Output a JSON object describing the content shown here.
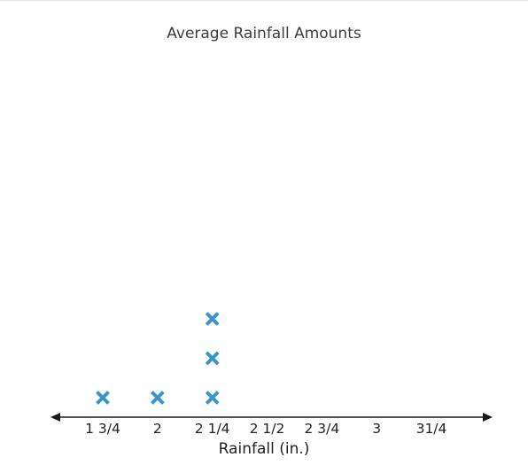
{
  "chart_data": {
    "type": "scatter",
    "subtype": "line-plot",
    "title": "Average Rainfall Amounts",
    "xlabel": "Rainfall (in.)",
    "ylabel": "",
    "tick_values": [
      1.75,
      2,
      2.25,
      2.5,
      2.75,
      3,
      3.25
    ],
    "tick_labels": [
      "1 3/4",
      "2",
      "2 1/4",
      "2 1/2",
      "2 3/4",
      "3",
      "31/4"
    ],
    "points": [
      {
        "x": 1.75,
        "count": 1
      },
      {
        "x": 2,
        "count": 1
      },
      {
        "x": 2.25,
        "count": 3
      },
      {
        "x": 2.5,
        "count": 0
      },
      {
        "x": 2.75,
        "count": 0
      },
      {
        "x": 3,
        "count": 0
      },
      {
        "x": 3.25,
        "count": 0
      }
    ],
    "marker": "x",
    "marker_color": "#3a94cc",
    "axis_color": "#1a1a1a",
    "grid": false
  }
}
